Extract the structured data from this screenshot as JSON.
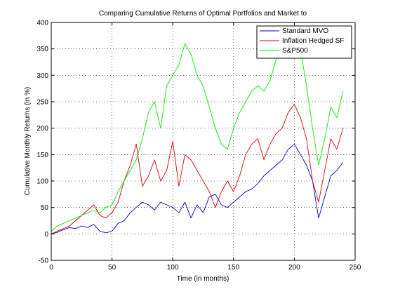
{
  "chart_data": {
    "type": "line",
    "title": "Comparing Cumulative Returns of Optimal Portfolios and Market to",
    "xlabel": "Time (in months)",
    "ylabel": "Cumulative Monthly Returns (in %)",
    "xlim": [
      0,
      250
    ],
    "ylim": [
      -50,
      400
    ],
    "xticks": [
      0,
      50,
      100,
      150,
      200,
      250
    ],
    "yticks": [
      -50,
      0,
      50,
      100,
      150,
      200,
      250,
      300,
      350,
      400
    ],
    "grid": true,
    "legend_position": "top-right",
    "series": [
      {
        "name": "Standard MVO",
        "color": "#0000cc",
        "x": [
          0,
          5,
          10,
          15,
          20,
          25,
          30,
          35,
          40,
          45,
          50,
          55,
          60,
          65,
          70,
          75,
          80,
          85,
          90,
          95,
          100,
          105,
          110,
          115,
          120,
          125,
          130,
          135,
          140,
          145,
          150,
          155,
          160,
          165,
          170,
          175,
          180,
          185,
          190,
          195,
          200,
          205,
          210,
          215,
          220,
          225,
          230,
          235,
          240
        ],
        "values": [
          0,
          3,
          8,
          12,
          10,
          15,
          12,
          18,
          5,
          2,
          5,
          20,
          25,
          40,
          50,
          60,
          55,
          45,
          60,
          55,
          50,
          40,
          60,
          30,
          55,
          40,
          70,
          75,
          55,
          50,
          60,
          70,
          80,
          85,
          95,
          110,
          120,
          130,
          140,
          160,
          170,
          150,
          130,
          100,
          30,
          70,
          110,
          120,
          135
        ]
      },
      {
        "name": "Inflation Hedged SF",
        "color": "#dd0000",
        "x": [
          0,
          5,
          10,
          15,
          20,
          25,
          30,
          35,
          40,
          45,
          50,
          55,
          60,
          65,
          70,
          75,
          80,
          85,
          90,
          95,
          100,
          105,
          110,
          115,
          120,
          125,
          130,
          135,
          140,
          145,
          150,
          155,
          160,
          165,
          170,
          175,
          180,
          185,
          190,
          195,
          200,
          205,
          210,
          215,
          220,
          225,
          230,
          235,
          240
        ],
        "values": [
          0,
          5,
          10,
          15,
          25,
          35,
          45,
          55,
          35,
          30,
          40,
          60,
          100,
          130,
          170,
          90,
          110,
          140,
          100,
          120,
          175,
          90,
          150,
          140,
          120,
          100,
          80,
          50,
          80,
          100,
          80,
          110,
          150,
          170,
          180,
          140,
          170,
          190,
          200,
          230,
          245,
          220,
          180,
          100,
          60,
          120,
          180,
          160,
          200
        ]
      },
      {
        "name": "S&P500",
        "color": "#00ee00",
        "x": [
          0,
          5,
          10,
          15,
          20,
          25,
          30,
          35,
          40,
          45,
          50,
          55,
          60,
          65,
          70,
          75,
          80,
          85,
          90,
          95,
          100,
          105,
          110,
          115,
          120,
          125,
          130,
          135,
          140,
          145,
          150,
          155,
          160,
          165,
          170,
          175,
          180,
          185,
          190,
          195,
          200,
          205,
          210,
          215,
          220,
          225,
          230,
          235,
          240
        ],
        "values": [
          5,
          15,
          20,
          25,
          30,
          35,
          40,
          45,
          40,
          50,
          55,
          80,
          100,
          120,
          140,
          180,
          230,
          250,
          200,
          280,
          300,
          320,
          360,
          340,
          300,
          280,
          240,
          200,
          170,
          160,
          200,
          230,
          250,
          270,
          280,
          270,
          290,
          330,
          370,
          390,
          380,
          350,
          280,
          200,
          130,
          180,
          240,
          220,
          270
        ]
      }
    ]
  }
}
